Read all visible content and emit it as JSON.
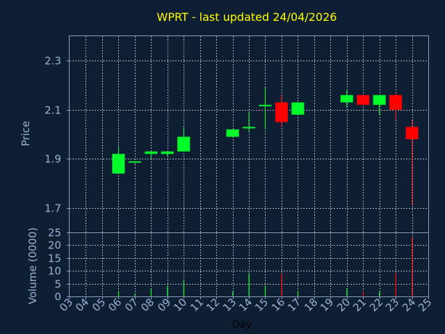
{
  "title": "WPRT - last updated 24/04/2026",
  "colors": {
    "background": "#0f1f33",
    "up": "#00ff2a",
    "down": "#ff0000",
    "title": "#ffff00",
    "axis_text": "#9bb4d6",
    "grid": "#c9d3e0"
  },
  "chart_data": [
    {
      "type": "candlestick",
      "ylabel": "Price",
      "ylim": [
        1.6,
        2.4
      ],
      "yticks": [
        "1.7",
        "1.9",
        "2.1",
        "2.3"
      ],
      "grid": true,
      "candles": [
        {
          "day": 6,
          "open": 1.84,
          "high": 1.95,
          "low": 1.84,
          "close": 1.92
        },
        {
          "day": 7,
          "open": 1.89,
          "high": 1.89,
          "low": 1.88,
          "close": 1.89
        },
        {
          "day": 8,
          "open": 1.92,
          "high": 1.93,
          "low": 1.9,
          "close": 1.93
        },
        {
          "day": 9,
          "open": 1.92,
          "high": 1.93,
          "low": 1.91,
          "close": 1.93
        },
        {
          "day": 10,
          "open": 1.93,
          "high": 2.03,
          "low": 1.93,
          "close": 1.99
        },
        {
          "day": 13,
          "open": 1.99,
          "high": 2.02,
          "low": 1.99,
          "close": 2.02
        },
        {
          "day": 14,
          "open": 2.03,
          "high": 2.09,
          "low": 2.01,
          "close": 2.03
        },
        {
          "day": 15,
          "open": 2.12,
          "high": 2.19,
          "low": 2.02,
          "close": 2.12
        },
        {
          "day": 16,
          "open": 2.13,
          "high": 2.16,
          "low": 2.03,
          "close": 2.05
        },
        {
          "day": 17,
          "open": 2.08,
          "high": 2.13,
          "low": 2.08,
          "close": 2.13
        },
        {
          "day": 20,
          "open": 2.13,
          "high": 2.18,
          "low": 2.11,
          "close": 2.16
        },
        {
          "day": 21,
          "open": 2.16,
          "high": 2.16,
          "low": 2.12,
          "close": 2.12
        },
        {
          "day": 22,
          "open": 2.12,
          "high": 2.16,
          "low": 2.08,
          "close": 2.16
        },
        {
          "day": 23,
          "open": 2.16,
          "high": 2.17,
          "low": 2.06,
          "close": 2.1
        },
        {
          "day": 24,
          "open": 2.03,
          "high": 2.06,
          "low": 1.71,
          "close": 1.98
        }
      ]
    },
    {
      "type": "bar",
      "ylabel": "Volume (0000)",
      "ylim": [
        0,
        25
      ],
      "yticks": [
        "0",
        "5",
        "10",
        "15",
        "20",
        "25"
      ],
      "xlabel": "Day",
      "xrange": [
        3,
        25
      ],
      "xticks": [
        "03",
        "04",
        "05",
        "06",
        "07",
        "08",
        "09",
        "10",
        "11",
        "12",
        "13",
        "14",
        "15",
        "16",
        "17",
        "18",
        "19",
        "20",
        "21",
        "22",
        "23",
        "24",
        "25"
      ],
      "grid": true,
      "bars": [
        {
          "day": 6,
          "value": 2,
          "dir": "up"
        },
        {
          "day": 7,
          "value": 1,
          "dir": "up"
        },
        {
          "day": 8,
          "value": 3,
          "dir": "up"
        },
        {
          "day": 9,
          "value": 4,
          "dir": "up"
        },
        {
          "day": 10,
          "value": 6,
          "dir": "up"
        },
        {
          "day": 13,
          "value": 2,
          "dir": "up"
        },
        {
          "day": 14,
          "value": 9,
          "dir": "up"
        },
        {
          "day": 15,
          "value": 4,
          "dir": "up"
        },
        {
          "day": 16,
          "value": 9,
          "dir": "down"
        },
        {
          "day": 17,
          "value": 2,
          "dir": "up"
        },
        {
          "day": 20,
          "value": 3,
          "dir": "up"
        },
        {
          "day": 21,
          "value": 2,
          "dir": "down"
        },
        {
          "day": 22,
          "value": 2,
          "dir": "up"
        },
        {
          "day": 23,
          "value": 9,
          "dir": "down"
        },
        {
          "day": 24,
          "value": 23,
          "dir": "down"
        }
      ]
    }
  ]
}
